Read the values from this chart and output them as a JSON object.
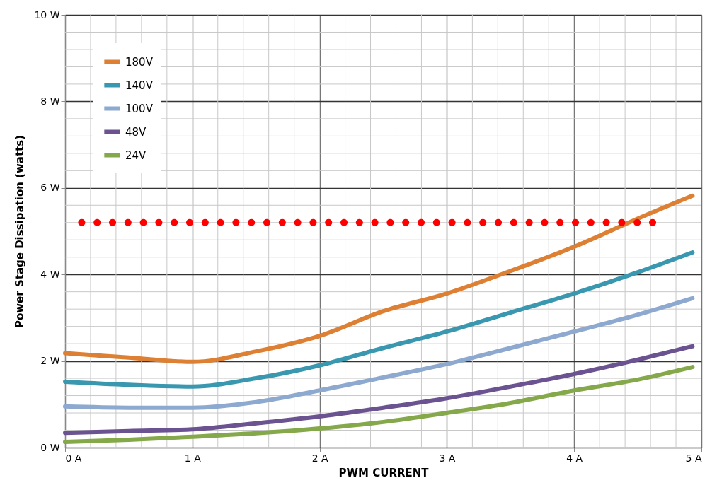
{
  "chart_data": {
    "type": "line",
    "xlabel": "PWM CURRENT",
    "ylabel": "Power Stage Dissipation (watts)",
    "x": [
      0,
      0.5,
      1,
      1.5,
      2,
      2.5,
      3,
      3.5,
      4,
      4.5,
      4.93
    ],
    "series": [
      {
        "name": "180V",
        "color": "#dd8033",
        "values": [
          2.18,
          2.08,
          1.98,
          2.22,
          2.58,
          3.15,
          3.56,
          4.08,
          4.64,
          5.29,
          5.82
        ]
      },
      {
        "name": "140V",
        "color": "#3a97b0",
        "values": [
          1.52,
          1.45,
          1.41,
          1.6,
          1.9,
          2.3,
          2.68,
          3.12,
          3.56,
          4.05,
          4.51
        ]
      },
      {
        "name": "100V",
        "color": "#8da9cf",
        "values": [
          0.95,
          0.92,
          0.92,
          1.05,
          1.32,
          1.62,
          1.93,
          2.3,
          2.68,
          3.07,
          3.45
        ]
      },
      {
        "name": "48V",
        "color": "#6b5290",
        "values": [
          0.34,
          0.38,
          0.42,
          0.56,
          0.72,
          0.92,
          1.14,
          1.41,
          1.7,
          2.03,
          2.34
        ]
      },
      {
        "name": "24V",
        "color": "#84a84a",
        "values": [
          0.13,
          0.18,
          0.25,
          0.33,
          0.44,
          0.59,
          0.8,
          1.03,
          1.32,
          1.57,
          1.86
        ]
      },
      {
        "color": "#ff0000",
        "x": [
          0.13,
          4.67
        ],
        "values": [
          5.2,
          5.2
        ],
        "line_style": "dotted"
      }
    ],
    "xlim": [
      0,
      5
    ],
    "ylim": [
      0,
      10
    ],
    "xticks": [
      {
        "value": 0,
        "label": "0 A"
      },
      {
        "value": 1,
        "label": "1 A"
      },
      {
        "value": 2,
        "label": "2 A"
      },
      {
        "value": 3,
        "label": "3 A"
      },
      {
        "value": 4,
        "label": "4 A"
      },
      {
        "value": 5,
        "label": "5 A"
      }
    ],
    "yticks": [
      {
        "value": 0,
        "label": "0 W"
      },
      {
        "value": 2,
        "label": "2 W"
      },
      {
        "value": 4,
        "label": "4 W"
      },
      {
        "value": 6,
        "label": "6 W"
      },
      {
        "value": 8,
        "label": "8 W"
      },
      {
        "value": 10,
        "label": "10 W"
      }
    ],
    "grid": true,
    "legend": "top left",
    "line_style": "solid",
    "marker": "none"
  }
}
